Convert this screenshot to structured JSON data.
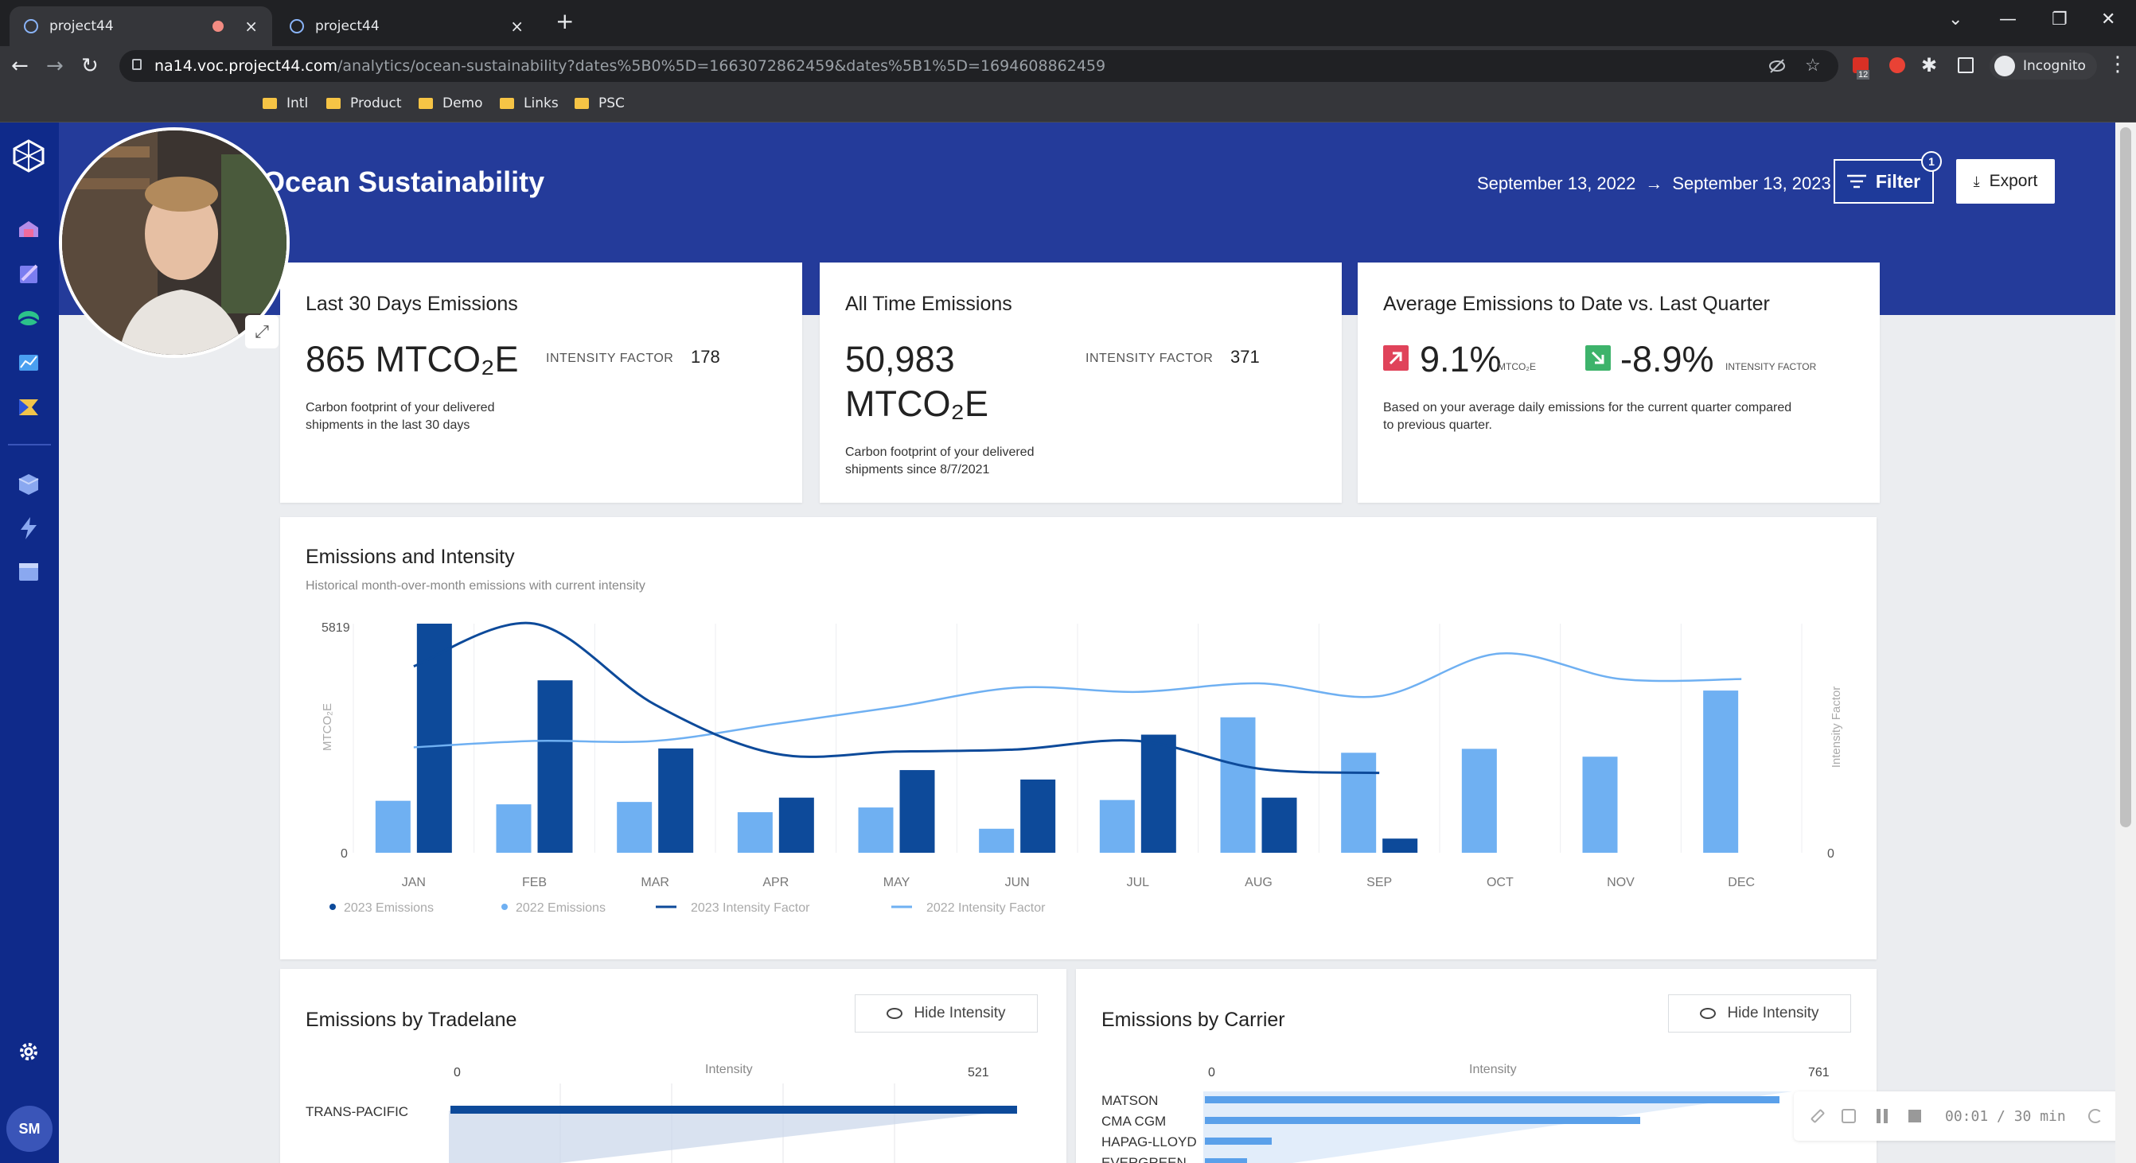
{
  "browser": {
    "tabs": [
      {
        "title": "project44",
        "recording": true
      },
      {
        "title": "project44",
        "recording": false
      }
    ],
    "url_host": "na14.voc.project44.com",
    "url_path": "/analytics/ocean-sustainability?dates%5B0%5D=1663072862459&dates%5B1%5D=1694608862459",
    "profile_label": "Incognito",
    "extension_badge": "12",
    "bookmarks": [
      "Intl",
      "Product",
      "Demo",
      "Links",
      "PSC"
    ]
  },
  "header": {
    "title": "Ocean Sustainability",
    "date_start": "September 13, 2022",
    "date_arrow": "→",
    "date_end": "September 13, 2023",
    "filter_label": "Filter",
    "filter_count": "1",
    "export_label": "Export"
  },
  "kpi_30days": {
    "title": "Last 30 Days Emissions",
    "value": "865 MTCO₂E",
    "intensity_label": "INTENSITY FACTOR",
    "intensity_value": "178",
    "desc_line1": "Carbon footprint of your delivered",
    "desc_line2": "shipments in the last 30 days"
  },
  "kpi_alltime": {
    "title": "All Time Emissions",
    "value_line1": "50,983",
    "value_line2": "MTCO₂E",
    "intensity_label": "INTENSITY FACTOR",
    "intensity_value": "371",
    "desc_line1": "Carbon footprint of your delivered",
    "desc_line2": "shipments since 8/7/2021"
  },
  "kpi_avg": {
    "title": "Average Emissions to Date vs. Last Quarter",
    "emissions_pct": "9.1%",
    "emissions_unit": "MTCO₂E",
    "intensity_pct": "-8.9%",
    "intensity_unit": "INTENSITY FACTOR",
    "desc_line1": "Based on your average daily emissions for the current quarter compared",
    "desc_line2": "to previous quarter.",
    "colors": {
      "up": "#e0435a",
      "down": "#3db36b"
    }
  },
  "chart_card": {
    "title": "Emissions and Intensity",
    "subtitle": "Historical month-over-month emissions with current intensity"
  },
  "chart_data": {
    "type": "bar",
    "categories": [
      "JAN",
      "FEB",
      "MAR",
      "APR",
      "MAY",
      "JUN",
      "JUL",
      "AUG",
      "SEP",
      "OCT",
      "NOV",
      "DEC"
    ],
    "ylabel": "MTCO₂E",
    "y2label": "Intensity Factor",
    "ylim": [
      0,
      5819
    ],
    "y_ticks": [
      "5819",
      "0"
    ],
    "y2_ticks": [
      "0"
    ],
    "y2lim": [
      0,
      100
    ],
    "series": [
      {
        "name": "2023 Emissions",
        "kind": "bar",
        "color": "#0d4a9a",
        "values": [
          5819,
          4380,
          2650,
          1400,
          2100,
          1860,
          3000,
          1400,
          360,
          null,
          null,
          null
        ]
      },
      {
        "name": "2022 Emissions",
        "kind": "bar",
        "color": "#6fb0f2",
        "values": [
          1320,
          1230,
          1290,
          1030,
          1150,
          610,
          1340,
          3440,
          2540,
          2640,
          2440,
          4120
        ]
      },
      {
        "name": "2023 Intensity Factor",
        "kind": "line",
        "color": "#0d4a9a",
        "values": [
          80,
          100,
          62,
          39,
          40,
          41,
          45,
          32,
          30,
          null,
          null,
          null
        ]
      },
      {
        "name": "2022 Intensity Factor",
        "kind": "line",
        "color": "#6fb0f2",
        "values": [
          42,
          45,
          45,
          53,
          61,
          70,
          68,
          72,
          66,
          86,
          74,
          74
        ]
      }
    ],
    "legend_position": "bottom-left",
    "grid": "vertical"
  },
  "tradelane_card": {
    "title": "Emissions by Tradelane",
    "hide_label": "Hide Intensity",
    "axis_min": "0",
    "axis_label": "Intensity",
    "axis_max": "521",
    "rows": [
      "TRANS-PACIFIC"
    ]
  },
  "carrier_card": {
    "title": "Emissions by Carrier",
    "hide_label": "Hide Intensity",
    "axis_min": "0",
    "axis_label": "Intensity",
    "axis_max": "761",
    "rows": [
      "MATSON",
      "CMA CGM",
      "HAPAG-LLOYD",
      "EVERGREEN"
    ],
    "values": [
      0.95,
      0.72,
      0.11,
      0.07
    ]
  },
  "recorder": {
    "timer": "00:01 / 30 min"
  },
  "user": {
    "initials": "SM"
  },
  "icons": {
    "logo": "cube-logo-icon",
    "nav": [
      "shipments-icon",
      "orders-icon",
      "ocean-icon",
      "analytics-icon",
      "flag-icon",
      "inventory-icon",
      "lightning-icon",
      "calendar-icon",
      "settings-icon"
    ]
  }
}
